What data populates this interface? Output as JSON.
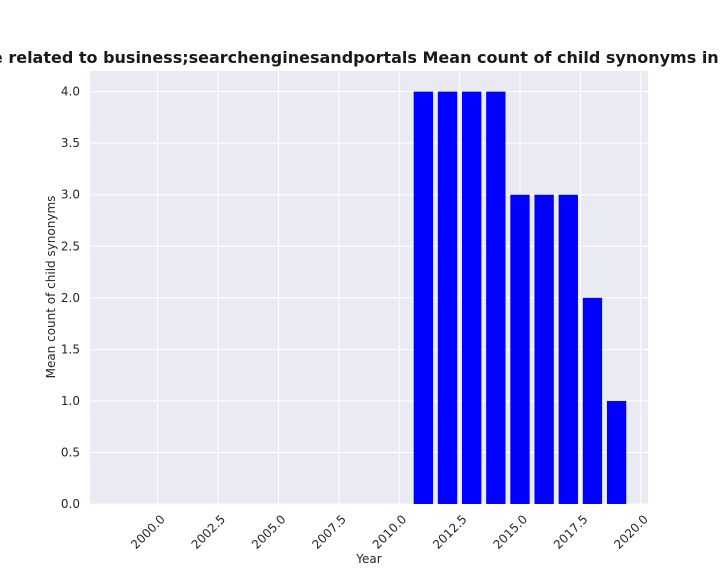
{
  "chart_data": {
    "type": "bar",
    "title": "ies are related to business;searchenginesandportals Mean count of child synonyms in privacy",
    "xlabel": "Year",
    "ylabel": "Mean count of child synonyms",
    "x": [
      2011,
      2012,
      2013,
      2014,
      2015,
      2016,
      2017,
      2018,
      2019
    ],
    "values": [
      4,
      4,
      4,
      4,
      3,
      3,
      3,
      2,
      1
    ],
    "xlim": [
      1997.2,
      2020.3
    ],
    "ylim": [
      0,
      4.2
    ],
    "xticks": [
      "2000.0",
      "2002.5",
      "2005.0",
      "2007.5",
      "2010.0",
      "2012.5",
      "2015.0",
      "2017.5",
      "2020.0"
    ],
    "yticks": [
      "0.0",
      "0.5",
      "1.0",
      "1.5",
      "2.0",
      "2.5",
      "3.0",
      "3.5",
      "4.0"
    ],
    "grid": true,
    "colors": {
      "bar": "#0000ff",
      "plot_background": "#eaeaf2",
      "grid": "#ffffff"
    }
  }
}
